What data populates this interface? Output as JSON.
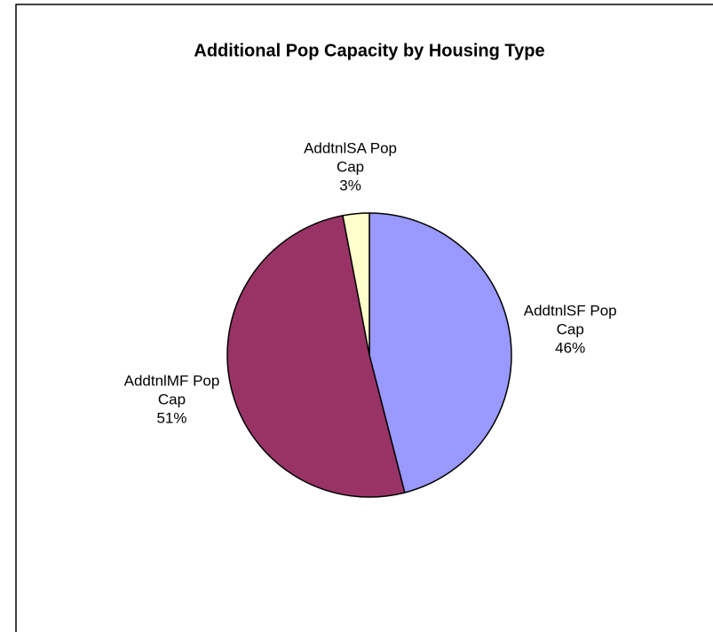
{
  "chart_data": {
    "type": "pie",
    "title": "Additional Pop Capacity by Housing Type",
    "categories": [
      "AddtnlSF Pop Cap",
      "AddtnlMF Pop Cap",
      "AddtnlSA Pop Cap"
    ],
    "values": [
      46,
      51,
      3
    ],
    "value_labels": [
      "46%",
      "51%",
      "3%"
    ],
    "colors": [
      "#9999ff",
      "#993366",
      "#ffffcc"
    ]
  }
}
